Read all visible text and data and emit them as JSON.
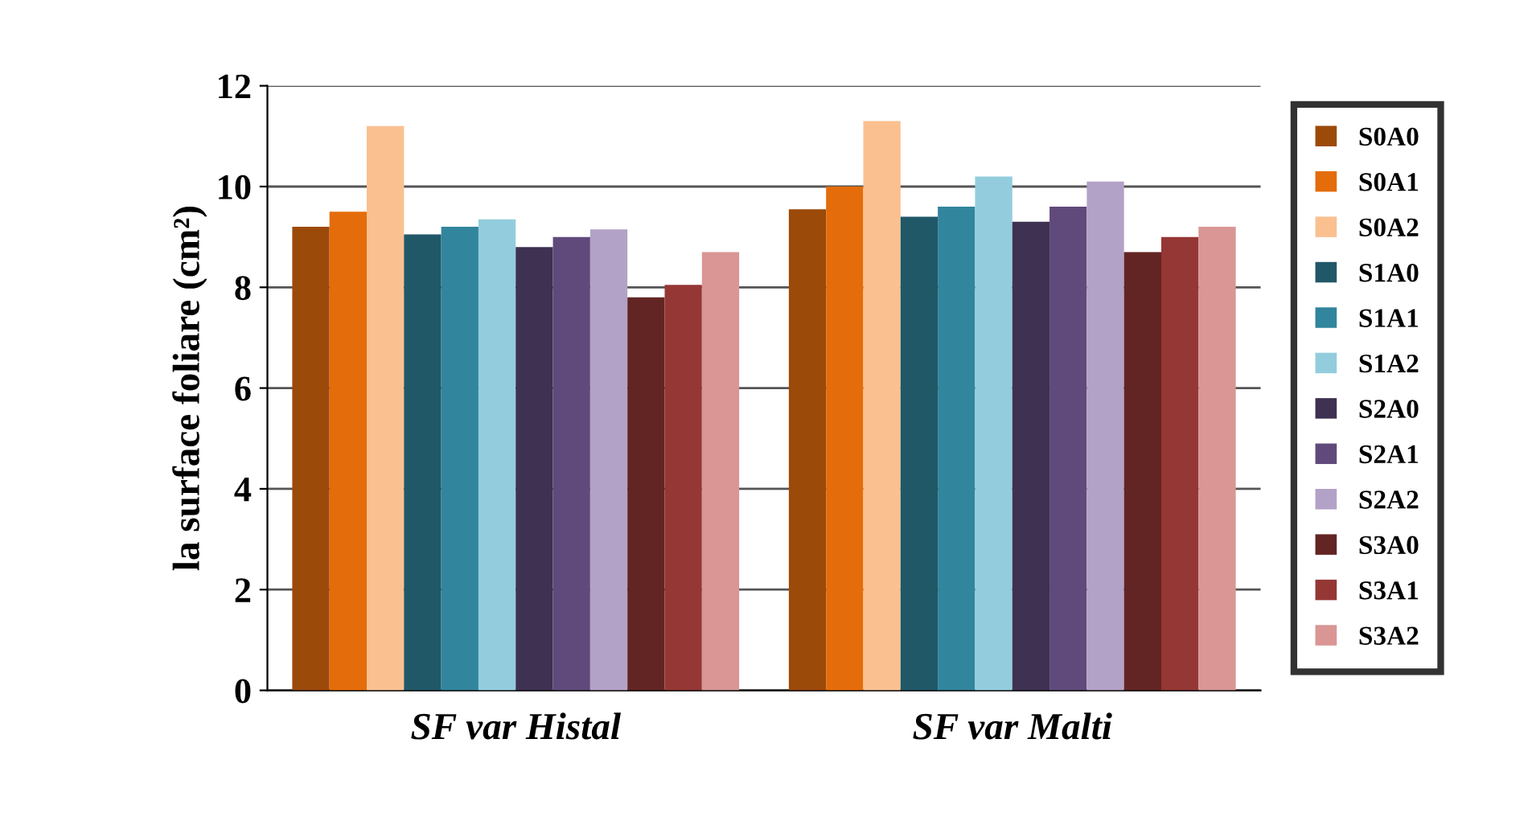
{
  "chart_data": {
    "type": "bar",
    "ylabel": "la surface foliare (cm²)",
    "categories": [
      "SF var Histal",
      "SF var Malti"
    ],
    "series": [
      {
        "name": "S0A0",
        "color": "#9c4a0a",
        "values": [
          9.2,
          9.55
        ]
      },
      {
        "name": "S0A1",
        "color": "#e46c0a",
        "values": [
          9.5,
          10.0
        ]
      },
      {
        "name": "S0A2",
        "color": "#fac090",
        "values": [
          11.2,
          11.3
        ]
      },
      {
        "name": "S1A0",
        "color": "#215868",
        "values": [
          9.05,
          9.4
        ]
      },
      {
        "name": "S1A1",
        "color": "#31859c",
        "values": [
          9.2,
          9.6
        ]
      },
      {
        "name": "S1A2",
        "color": "#93cddd",
        "values": [
          9.35,
          10.2
        ]
      },
      {
        "name": "S2A0",
        "color": "#3f3151",
        "values": [
          8.8,
          9.3
        ]
      },
      {
        "name": "S2A1",
        "color": "#604a7b",
        "values": [
          9.0,
          9.6
        ]
      },
      {
        "name": "S2A2",
        "color": "#b3a2c7",
        "values": [
          9.15,
          10.1
        ]
      },
      {
        "name": "S3A0",
        "color": "#632523",
        "values": [
          7.8,
          8.7
        ]
      },
      {
        "name": "S3A1",
        "color": "#953735",
        "values": [
          8.05,
          9.0
        ]
      },
      {
        "name": "S3A2",
        "color": "#d99694",
        "values": [
          8.7,
          9.2
        ]
      }
    ],
    "ylim": [
      0,
      12
    ],
    "yticks": [
      0,
      2,
      4,
      6,
      8,
      10,
      12
    ],
    "grid": "y",
    "legend": "right"
  }
}
